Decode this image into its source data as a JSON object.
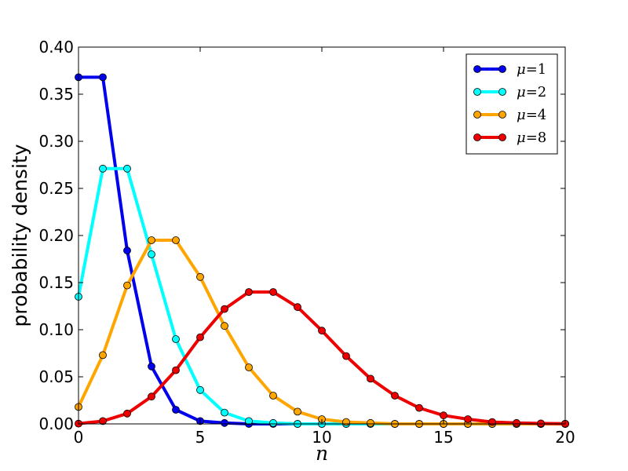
{
  "chart_data": {
    "type": "line",
    "title": "",
    "xlabel": "n",
    "ylabel": "probability density",
    "xlim": [
      0,
      20
    ],
    "ylim": [
      0,
      0.4
    ],
    "xticks": [
      0,
      5,
      10,
      15,
      20
    ],
    "xtick_labels": [
      "0",
      "5",
      "10",
      "15",
      "20"
    ],
    "yticks": [
      0,
      0.05,
      0.1,
      0.15,
      0.2,
      0.25,
      0.3,
      0.35,
      0.4
    ],
    "ytick_labels": [
      "0.00",
      "0.05",
      "0.10",
      "0.15",
      "0.20",
      "0.25",
      "0.30",
      "0.35",
      "0.40"
    ],
    "grid": false,
    "legend_position": "top-right",
    "x": [
      0,
      1,
      2,
      3,
      4,
      5,
      6,
      7,
      8,
      9,
      10,
      11,
      12,
      13,
      14,
      15,
      16,
      17,
      18,
      19,
      20
    ],
    "series": [
      {
        "name": "μ=1",
        "legend_symbol": "μ",
        "legend_value": "=1",
        "color": "#0000ee",
        "marker_color": "#0000ee",
        "values": [
          0.368,
          0.368,
          0.184,
          0.061,
          0.015,
          0.003,
          0.001,
          0.0,
          0.0,
          0.0,
          0.0,
          0.0,
          0.0,
          0.0,
          0.0,
          0.0,
          0.0,
          0.0,
          0.0,
          0.0,
          0.0
        ]
      },
      {
        "name": "μ=2",
        "legend_symbol": "μ",
        "legend_value": "=2",
        "color": "#00ffff",
        "marker_color": "#00ffff",
        "values": [
          0.135,
          0.271,
          0.271,
          0.18,
          0.09,
          0.036,
          0.012,
          0.003,
          0.001,
          0.0,
          0.0,
          0.0,
          0.0,
          0.0,
          0.0,
          0.0,
          0.0,
          0.0,
          0.0,
          0.0,
          0.0
        ]
      },
      {
        "name": "μ=4",
        "legend_symbol": "μ",
        "legend_value": "=4",
        "color": "#ffa500",
        "marker_color": "#ffa500",
        "values": [
          0.018,
          0.073,
          0.147,
          0.195,
          0.195,
          0.156,
          0.104,
          0.06,
          0.03,
          0.013,
          0.005,
          0.002,
          0.001,
          0.0,
          0.0,
          0.0,
          0.0,
          0.0,
          0.0,
          0.0,
          0.0
        ]
      },
      {
        "name": "μ=8",
        "legend_symbol": "μ",
        "legend_value": "=8",
        "color": "#ee0000",
        "marker_color": "#ee0000",
        "values": [
          0.0003,
          0.003,
          0.011,
          0.029,
          0.057,
          0.092,
          0.122,
          0.14,
          0.14,
          0.124,
          0.099,
          0.072,
          0.048,
          0.03,
          0.017,
          0.009,
          0.005,
          0.002,
          0.001,
          0.0005,
          0.0002
        ]
      }
    ]
  }
}
